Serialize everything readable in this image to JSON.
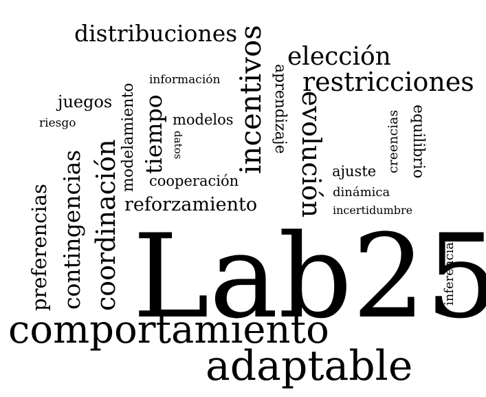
{
  "words": {
    "lab25": "Lab25",
    "comportamiento": "comportamiento",
    "adaptable": "adaptable",
    "distribuciones": "distribuciones",
    "incentivos": "incentivos",
    "eleccion": "elección",
    "restricciones": "restricciones",
    "informacion": "información",
    "juegos": "juegos",
    "riesgo": "riesgo",
    "modelos": "modelos",
    "datos": "datos",
    "aprendizaje": "aprendizaje",
    "evolucion": "evolución",
    "creencias": "creencias",
    "equilibrio": "equilibrio",
    "ajuste": "ajuste",
    "dinamica": "dinámica",
    "incertidumbre": "incertidumbre",
    "cooperacion": "cooperación",
    "reforzamiento": "reforzamiento",
    "modelamiento": "modelamiento",
    "tiempo": "tiempo",
    "coordinacion": "coordinación",
    "contingencias": "contingencias",
    "preferencias": "preferencias",
    "inferencia": "inferencia"
  },
  "colors": {
    "text": "#000000",
    "background": "#ffffff"
  }
}
